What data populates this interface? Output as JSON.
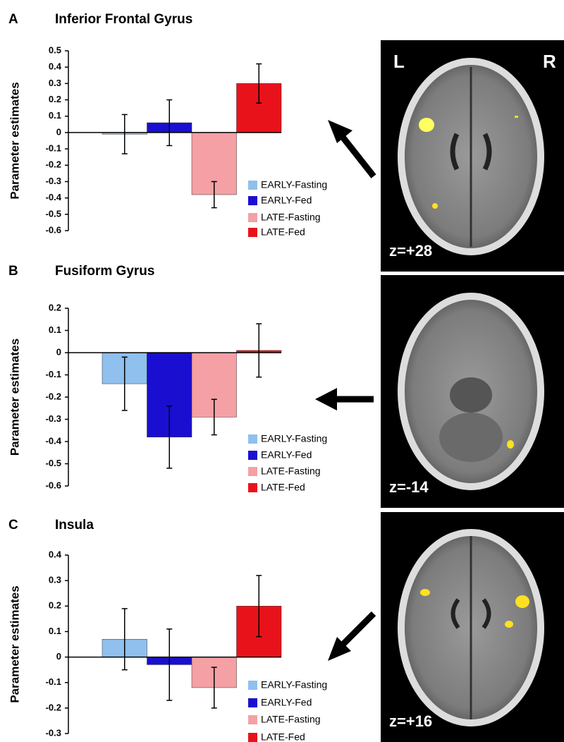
{
  "chart_data": [
    {
      "type": "bar",
      "panel": "A",
      "title": "Inferior Frontal Gyrus",
      "ylabel": "Parameter estimates",
      "ylim": [
        -0.6,
        0.5
      ],
      "yticks": [
        -0.6,
        -0.5,
        -0.4,
        -0.3,
        -0.2,
        -0.1,
        0,
        0.1,
        0.2,
        0.3,
        0.4,
        0.5
      ],
      "series": [
        {
          "name": "EARLY-Fasting",
          "color": "#8fc0ee",
          "values": [
            -0.01
          ],
          "errors": [
            0.12
          ]
        },
        {
          "name": "EARLY-Fed",
          "color": "#1a0fd0",
          "values": [
            0.06
          ],
          "errors": [
            0.14
          ]
        },
        {
          "name": "LATE-Fasting",
          "color": "#f4a0a5",
          "values": [
            -0.38
          ],
          "errors": [
            0.08
          ]
        },
        {
          "name": "LATE-Fed",
          "color": "#e8121a",
          "values": [
            0.3
          ],
          "errors": [
            0.12
          ]
        }
      ],
      "image": {
        "slice": "z=+28",
        "left": "L",
        "right": "R"
      }
    },
    {
      "type": "bar",
      "panel": "B",
      "title": "Fusiform Gyrus",
      "ylabel": "Parameter estimates",
      "ylim": [
        -0.6,
        0.2
      ],
      "yticks": [
        -0.6,
        -0.5,
        -0.4,
        -0.3,
        -0.2,
        -0.1,
        0,
        0.1,
        0.2
      ],
      "series": [
        {
          "name": "EARLY-Fasting",
          "color": "#8fc0ee",
          "values": [
            -0.14
          ],
          "errors": [
            0.12
          ]
        },
        {
          "name": "EARLY-Fed",
          "color": "#1a0fd0",
          "values": [
            -0.38
          ],
          "errors": [
            0.14
          ]
        },
        {
          "name": "LATE-Fasting",
          "color": "#f4a0a5",
          "values": [
            -0.29
          ],
          "errors": [
            0.08
          ]
        },
        {
          "name": "LATE-Fed",
          "color": "#e8121a",
          "values": [
            0.01
          ],
          "errors": [
            0.12
          ]
        }
      ],
      "image": {
        "slice": "z=-14"
      }
    },
    {
      "type": "bar",
      "panel": "C",
      "title": "Insula",
      "ylabel": "Parameter estimates",
      "ylim": [
        -0.3,
        0.4
      ],
      "yticks": [
        -0.3,
        -0.2,
        -0.1,
        0,
        0.1,
        0.2,
        0.3,
        0.4
      ],
      "series": [
        {
          "name": "EARLY-Fasting",
          "color": "#8fc0ee",
          "values": [
            0.07
          ],
          "errors": [
            0.12
          ]
        },
        {
          "name": "EARLY-Fed",
          "color": "#1a0fd0",
          "values": [
            -0.03
          ],
          "errors": [
            0.14
          ]
        },
        {
          "name": "LATE-Fasting",
          "color": "#f4a0a5",
          "values": [
            -0.12
          ],
          "errors": [
            0.08
          ]
        },
        {
          "name": "LATE-Fed",
          "color": "#e8121a",
          "values": [
            0.2
          ],
          "errors": [
            0.12
          ]
        }
      ],
      "image": {
        "slice": "z=+16"
      }
    }
  ]
}
